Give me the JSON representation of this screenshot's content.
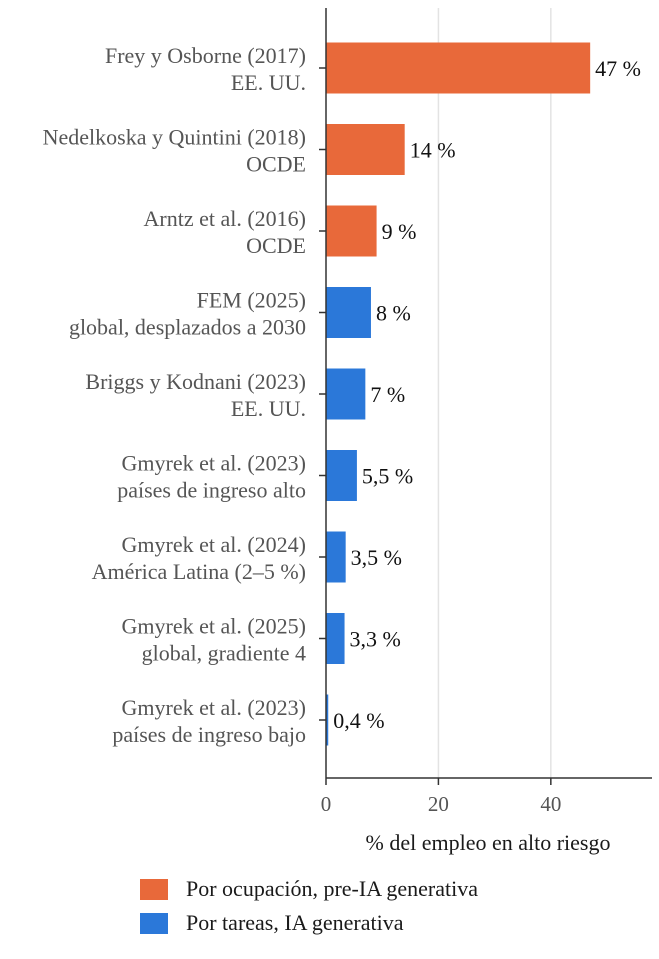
{
  "chart_data": {
    "type": "bar",
    "orientation": "horizontal",
    "xlabel": "% del empleo en alto riesgo",
    "xlim": [
      0,
      58
    ],
    "xticks": [
      0,
      20,
      40
    ],
    "grid": "vertical",
    "legend_position": "bottom",
    "categories": [
      {
        "line1": "Frey y Osborne (2017)",
        "line2": "EE. UU."
      },
      {
        "line1": "Nedelkoska y Quintini (2018)",
        "line2": "OCDE"
      },
      {
        "line1": "Arntz et al. (2016)",
        "line2": "OCDE"
      },
      {
        "line1": "FEM (2025)",
        "line2": "global, desplazados a 2030"
      },
      {
        "line1": "Briggs y Kodnani (2023)",
        "line2": "EE. UU."
      },
      {
        "line1": "Gmyrek et al. (2023)",
        "line2": "países de ingreso alto"
      },
      {
        "line1": "Gmyrek et al. (2024)",
        "line2": "América Latina (2–5 %)"
      },
      {
        "line1": "Gmyrek et al. (2025)",
        "line2": "global, gradiente 4"
      },
      {
        "line1": "Gmyrek et al. (2023)",
        "line2": "países de ingreso bajo"
      }
    ],
    "values": [
      47,
      14,
      9,
      8,
      7,
      5.5,
      3.5,
      3.3,
      0.4
    ],
    "value_labels": [
      "47 %",
      "14 %",
      "9 %",
      "8 %",
      "7 %",
      "5,5 %",
      "3,5 %",
      "3,3 %",
      "0,4 %"
    ],
    "groups": [
      0,
      0,
      0,
      1,
      1,
      1,
      1,
      1,
      1
    ],
    "series": [
      {
        "name": "Por ocupación, pre-IA generativa",
        "color": "#E8693A"
      },
      {
        "name": "Por tareas, IA generativa",
        "color": "#2B78D9"
      }
    ]
  }
}
